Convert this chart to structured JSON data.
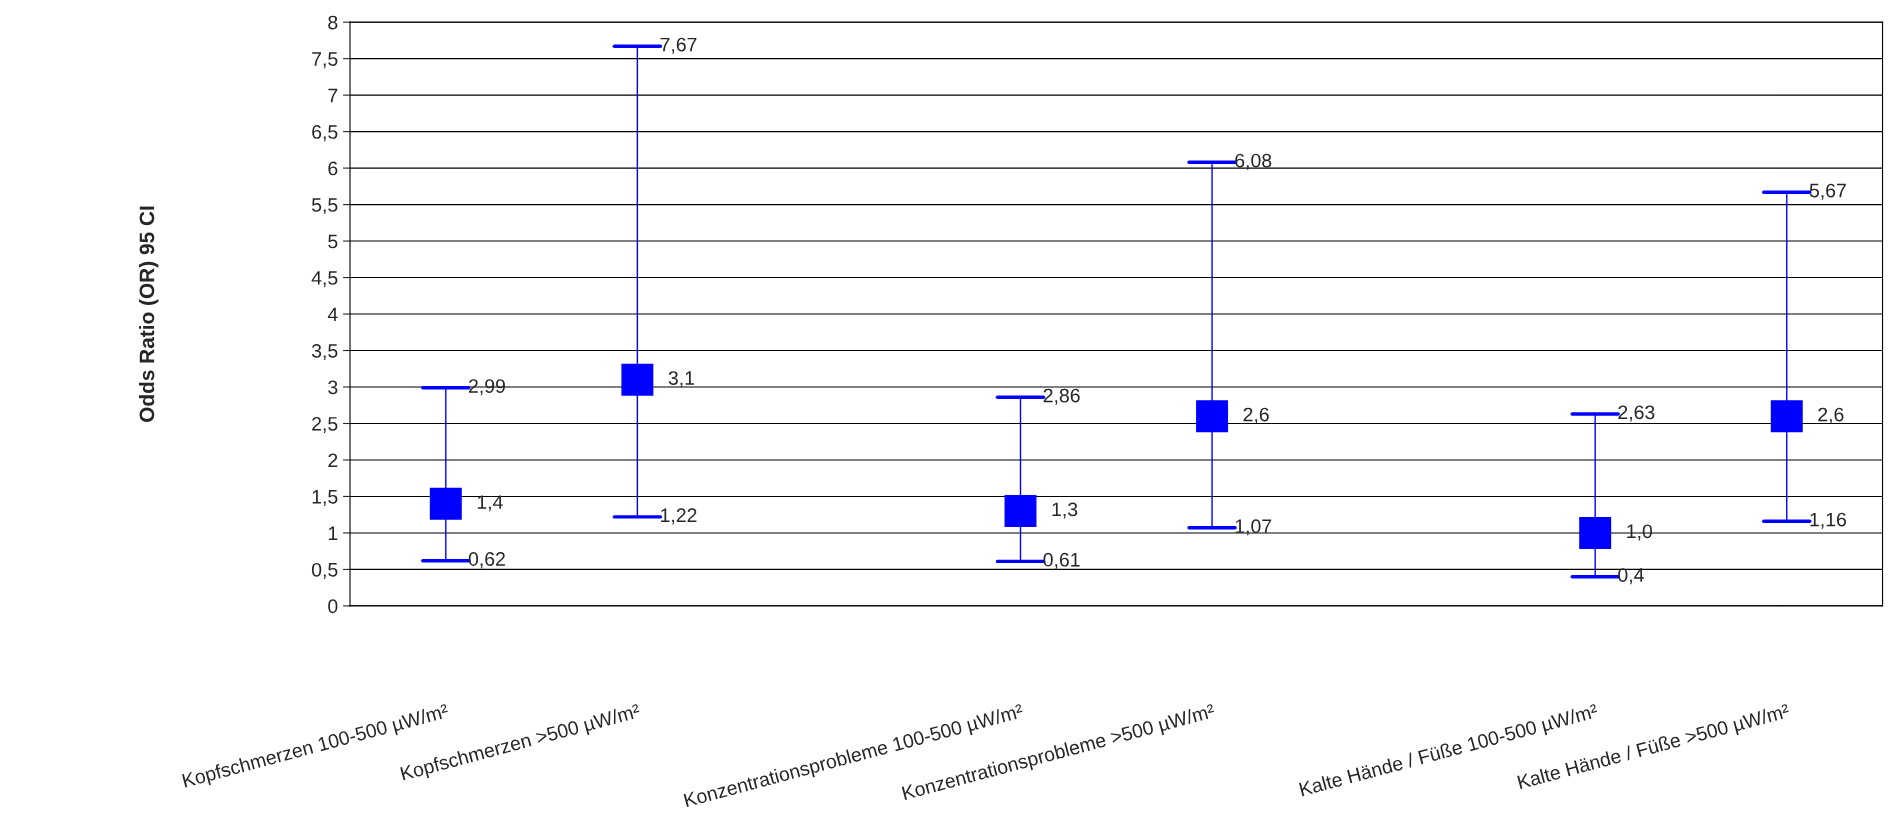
{
  "chart_data": {
    "type": "scatter",
    "ylabel": "Odds Ratio (OR) 95 CI",
    "categories": [
      "Kopfschmerzen 100-500 µW/m²",
      "Kopfschmerzen >500 µW/m²",
      null,
      "Konzentrationsprobleme 100-500 µW/m²",
      "Konzentrationsprobleme >500 µW/m²",
      null,
      "Kalte Hände / Füße 100-500 µW/m²",
      "Kalte Hände / Füße >500 µW/m²"
    ],
    "series": [
      {
        "color": "#0000ff",
        "values": [
          1.4,
          3.1,
          null,
          1.3,
          2.6,
          null,
          1.0,
          2.6
        ],
        "errors": [
          [
            0.62,
            2.99
          ],
          [
            1.22,
            7.67
          ],
          null,
          [
            0.61,
            2.86
          ],
          [
            1.07,
            6.08
          ],
          null,
          [
            0.4,
            2.63
          ],
          [
            1.16,
            5.67
          ]
        ],
        "value_labels": [
          "1,4",
          "3,1",
          null,
          "1,3",
          "2,6",
          null,
          "1,0",
          "2,6"
        ]
      }
    ],
    "annotations": [
      {
        "text": "2,99",
        "x": "Kopfschmerzen 100-500 µW/m²",
        "y": 2.99
      },
      {
        "text": "0,62",
        "x": "Kopfschmerzen 100-500 µW/m²",
        "y": 0.62
      },
      {
        "text": "7,67",
        "x": "Kopfschmerzen >500 µW/m²",
        "y": 7.67
      },
      {
        "text": "1,22",
        "x": "Kopfschmerzen >500 µW/m²",
        "y": 1.22
      },
      {
        "text": "2,86",
        "x": "Konzentrationsprobleme 100-500 µW/m²",
        "y": 2.86
      },
      {
        "text": "0,61",
        "x": "Konzentrationsprobleme 100-500 µW/m²",
        "y": 0.61
      },
      {
        "text": "6,08",
        "x": "Konzentrationsprobleme >500 µW/m²",
        "y": 6.08
      },
      {
        "text": "1,07",
        "x": "Konzentrationsprobleme >500 µW/m²",
        "y": 1.07
      },
      {
        "text": "2,63",
        "x": "Kalte Hände / Füße 100-500 µW/m²",
        "y": 2.63
      },
      {
        "text": "0,4",
        "x": "Kalte Hände / Füße 100-500 µW/m²",
        "y": 0.4
      },
      {
        "text": "5,67",
        "x": "Kalte Hände / Füße >500 µW/m²",
        "y": 5.67
      },
      {
        "text": "1,16",
        "x": "Kalte Hände / Füße >500 µW/m²",
        "y": 1.16
      }
    ],
    "ylim": [
      0,
      8
    ],
    "yticks": [
      0,
      {
        "value": 0.5,
        "label": "0,5"
      },
      1,
      {
        "value": 1.5,
        "label": "1,5"
      },
      2,
      {
        "value": 2.5,
        "label": "2,5"
      },
      3,
      {
        "value": 3.5,
        "label": "3,5"
      },
      4,
      {
        "value": 4.5,
        "label": "4,5"
      },
      5,
      {
        "value": 5.5,
        "label": "5,5"
      },
      6,
      {
        "value": 6.5,
        "label": "6,5"
      },
      7,
      {
        "value": 7.5,
        "label": "7,5"
      },
      8
    ],
    "grid": "y",
    "marker": "square",
    "legend": false
  }
}
